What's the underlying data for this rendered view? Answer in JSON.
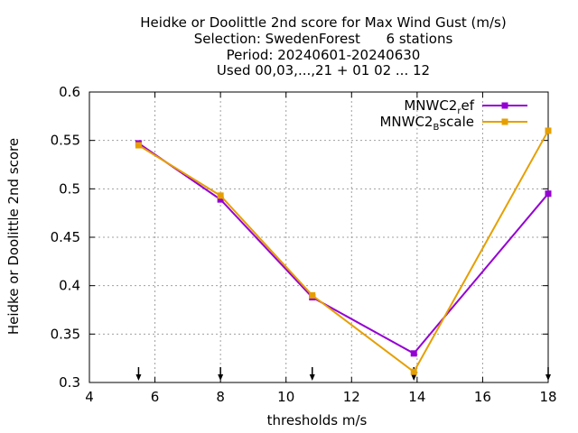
{
  "chart_data": {
    "type": "line",
    "title_lines": [
      "Heidke or Doolittle 2nd score  for Max Wind Gust (m/s)",
      "Selection: SwedenForest      6 stations",
      "Period: 20240601-20240630",
      "Used 00,03,...,21 + 01 02 ... 12"
    ],
    "xlabel": "thresholds m/s",
    "ylabel": "Heidke or Doolittle 2nd score",
    "xlim": [
      4,
      18
    ],
    "ylim": [
      0.3,
      0.6
    ],
    "xticks": [
      4,
      6,
      8,
      10,
      12,
      14,
      16,
      18
    ],
    "yticks": [
      0.3,
      0.35,
      0.4,
      0.45,
      0.5,
      0.55,
      0.6
    ],
    "xtick_labels": [
      "4",
      "6",
      "8",
      "10",
      "12",
      "14",
      "16",
      "18"
    ],
    "ytick_labels": [
      "0.3",
      "0.35",
      "0.4",
      "0.45",
      "0.5",
      "0.55",
      "0.6"
    ],
    "grid": true,
    "legend_position": "top-right",
    "threshold_markers": [
      5.5,
      8,
      10.8,
      13.9,
      18
    ],
    "series": [
      {
        "name_base": "MNWC2",
        "name_sub": "r",
        "name_rest": "ef",
        "color": "#9400d3",
        "x": [
          5.5,
          8,
          10.8,
          13.9,
          18
        ],
        "y": [
          0.547,
          0.489,
          0.388,
          0.33,
          0.495
        ]
      },
      {
        "name_base": "MNWC2",
        "name_sub": "B",
        "name_rest": "scale",
        "color": "#e69f00",
        "x": [
          5.5,
          8,
          10.8,
          13.9,
          18
        ],
        "y": [
          0.545,
          0.493,
          0.39,
          0.311,
          0.56
        ]
      }
    ]
  }
}
